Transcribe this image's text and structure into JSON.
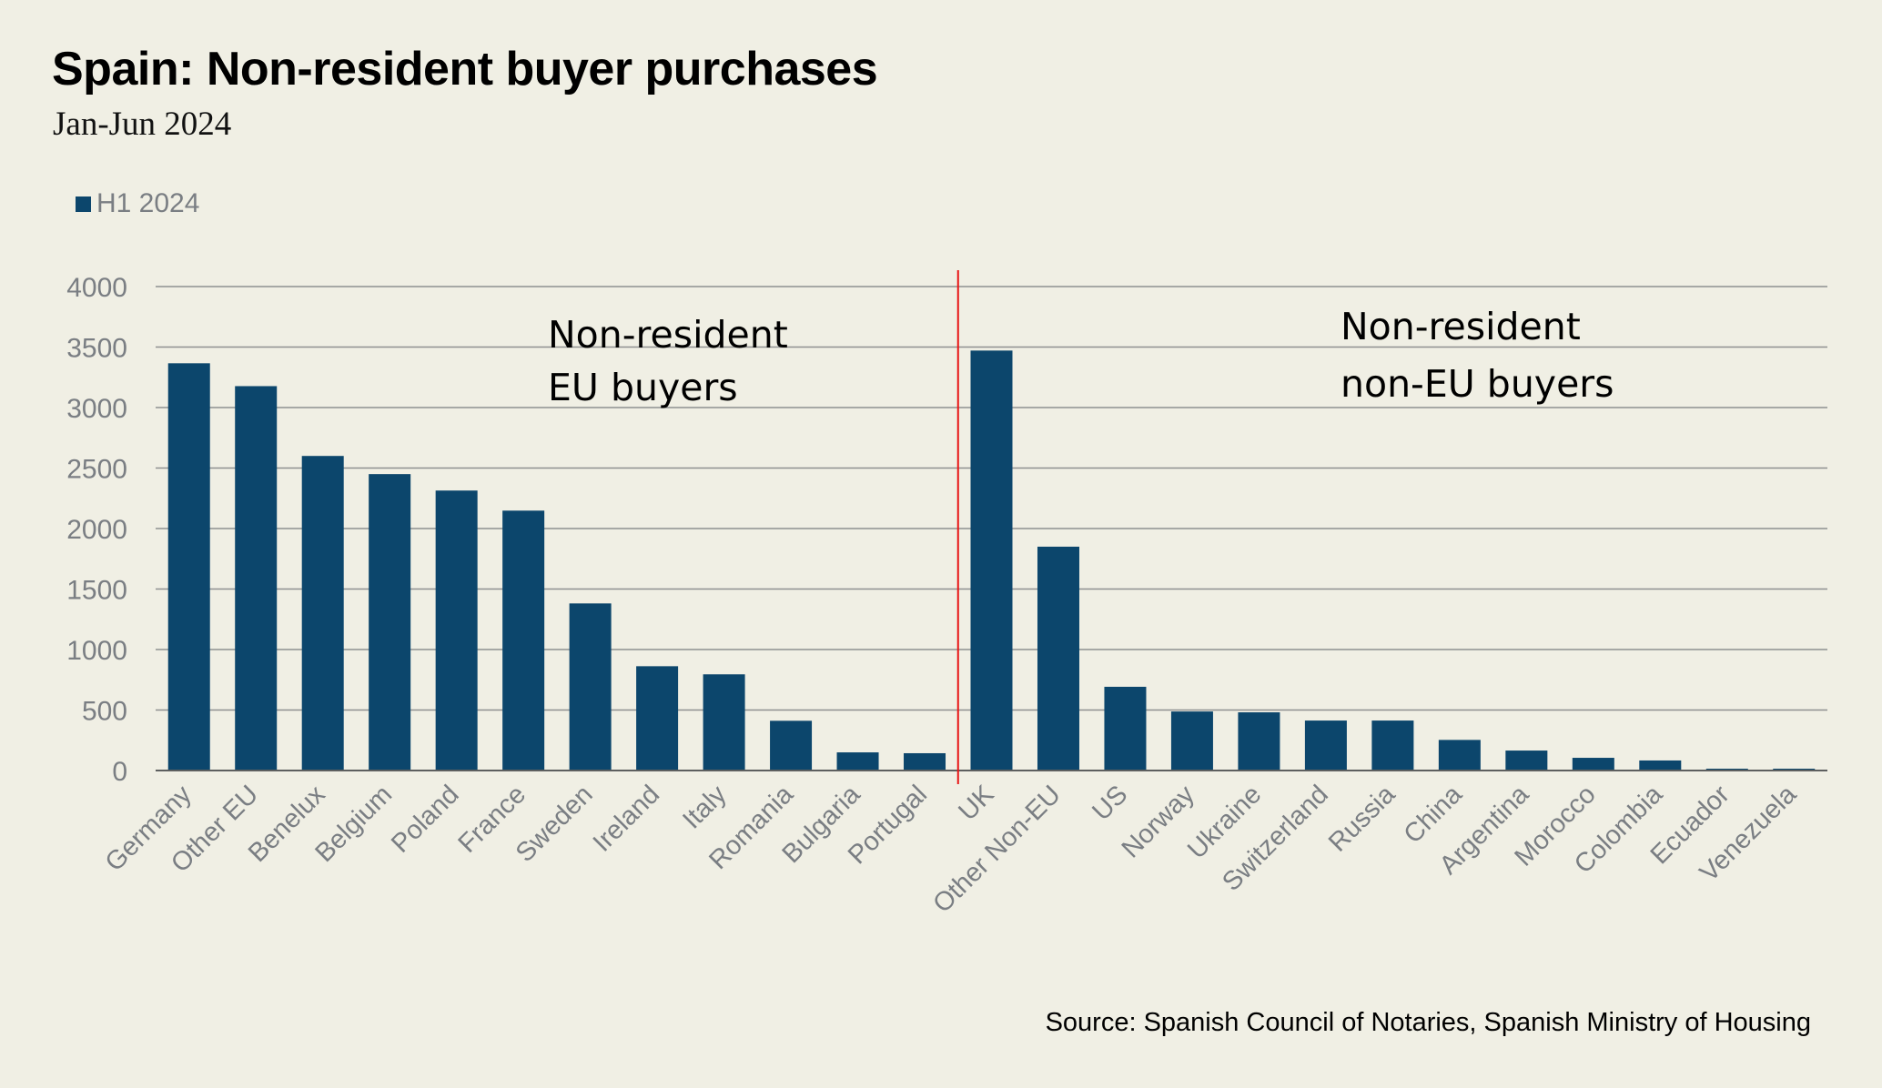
{
  "header": {
    "title": "Spain: Non-resident buyer purchases",
    "subtitle": "Jan-Jun 2024"
  },
  "footer": {
    "source": "Source: Spanish Council of Notaries, Spanish Ministry of Housing"
  },
  "colors": {
    "bar": "#0c466c",
    "divider": "#e81515",
    "grid": "#8e9090",
    "axis": "#5d5f5f",
    "background": "#f0efe4"
  },
  "chart_data": {
    "type": "bar",
    "title": "Spain: Non-resident buyer purchases",
    "subtitle": "Jan-Jun 2024",
    "xlabel": "",
    "ylabel": "",
    "ylim": [
      0,
      4000
    ],
    "yticks": [
      0,
      500,
      1000,
      1500,
      2000,
      2500,
      3000,
      3500,
      4000
    ],
    "grid": true,
    "legend": {
      "position": "top-left",
      "entries": [
        "H1 2024"
      ]
    },
    "categories": [
      "Germany",
      "Other EU",
      "Benelux",
      "Belgium",
      "Poland",
      "France",
      "Sweden",
      "Ireland",
      "Italy",
      "Romania",
      "Bulgaria",
      "Portugal",
      "UK",
      "Other Non-EU",
      "US",
      "Norway",
      "Ukraine",
      "Switzerland",
      "Russia",
      "China",
      "Argentina",
      "Morocco",
      "Colombia",
      "Ecuador",
      "Venezuela"
    ],
    "series": [
      {
        "name": "H1 2024",
        "values": [
          3366,
          3177,
          2600,
          2450,
          2314,
          2148,
          1381,
          862,
          795,
          411,
          150,
          143,
          3471,
          1850,
          692,
          488,
          481,
          413,
          413,
          253,
          165,
          105,
          83,
          15,
          15
        ]
      }
    ],
    "divider_after_index": 11,
    "annotations": [
      {
        "lines": [
          "Non-resident",
          "EU buyers"
        ],
        "group": "EU"
      },
      {
        "lines": [
          "Non-resident",
          "non-EU buyers"
        ],
        "group": "non-EU"
      }
    ]
  }
}
